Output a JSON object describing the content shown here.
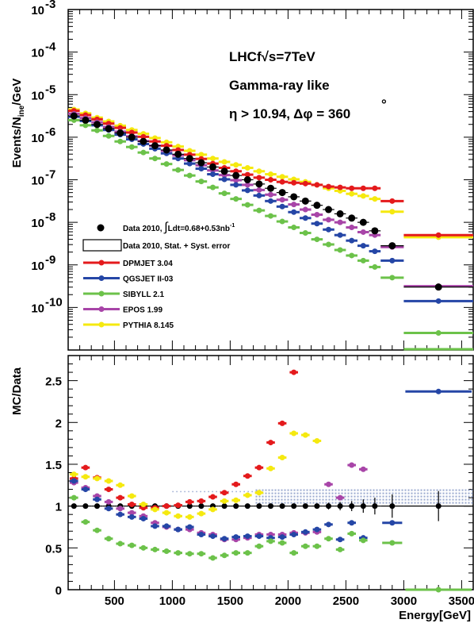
{
  "colors": {
    "red": "#e41a1c",
    "blue": "#2546a6",
    "green": "#6cc24a",
    "purple": "#a845a8",
    "yellow": "#f5e90f",
    "black": "#000000",
    "band": "#9aa9cf"
  },
  "chart_data": [
    {
      "type": "scatter",
      "xlabel": "",
      "ylabel": "Events/N_ine/GeV",
      "ylabel_main": "Events/N",
      "ylabel_sub": "ine",
      "ylabel_tail": "/GeV",
      "yscale": "log",
      "xlim": [
        100,
        3600
      ],
      "ylim_exp": [
        -11,
        -3
      ],
      "y_tick_labels": [
        "10",
        "10",
        "10",
        "10",
        "10",
        "10",
        "10",
        "10"
      ],
      "y_tick_exponents": [
        "-3",
        "-4",
        "-5",
        "-6",
        "-7",
        "-8",
        "-9",
        "-10"
      ],
      "y_tick_values_exp": [
        -3,
        -4,
        -5,
        -6,
        -7,
        -8,
        -9,
        -10
      ],
      "annotations": {
        "line1": "LHCf√s=7TeV",
        "line2": "Gamma-ray like",
        "line3": "η > 10.94, Δφ = 360",
        "degree": "°"
      },
      "legend_position": "lower-left",
      "legend": [
        {
          "key": "data",
          "label_a": "Data 2010, ",
          "label_b": "Ldt=0.68+0.53nb",
          "label_sup": "-1",
          "integral": "∫"
        },
        {
          "key": "syst",
          "label": "Data 2010, Stat. + Syst. error"
        },
        {
          "key": "red",
          "label": "DPMJET 3.04"
        },
        {
          "key": "blue",
          "label": "QGSJET II-03"
        },
        {
          "key": "green",
          "label": "SIBYLL 2.1"
        },
        {
          "key": "purple",
          "label": "EPOS 1.99"
        },
        {
          "key": "yellow",
          "label": "PYTHIA 8.145"
        }
      ],
      "x_bins": [
        100,
        200,
        300,
        400,
        500,
        600,
        700,
        800,
        900,
        1000,
        1100,
        1200,
        1300,
        1400,
        1500,
        1600,
        1700,
        1800,
        1900,
        2000,
        2100,
        2200,
        2300,
        2400,
        2500,
        2600,
        2700,
        2800,
        3000,
        3600
      ],
      "series": [
        {
          "key": "yellow",
          "name": "PYTHIA 8.145",
          "log_values": [
            -5.35,
            -5.44,
            -5.54,
            -5.63,
            -5.73,
            -5.83,
            -5.92,
            -6.02,
            -6.12,
            -6.22,
            -6.32,
            -6.41,
            -6.5,
            -6.58,
            -6.65,
            -6.72,
            -6.8,
            -6.87,
            -6.93,
            -6.99,
            -7.05,
            -7.12,
            -7.2,
            -7.26,
            -7.33,
            -7.38,
            -7.45,
            -7.75,
            -8.35
          ]
        },
        {
          "key": "red",
          "name": "DPMJET 3.04",
          "log_values": [
            -5.38,
            -5.48,
            -5.58,
            -5.68,
            -5.78,
            -5.89,
            -5.99,
            -6.1,
            -6.2,
            -6.3,
            -6.41,
            -6.51,
            -6.62,
            -6.72,
            -6.8,
            -6.88,
            -6.95,
            -7.0,
            -7.05,
            -7.07,
            -7.09,
            -7.12,
            -7.16,
            -7.18,
            -7.2,
            -7.2,
            -7.2,
            -7.5,
            -8.3
          ]
        },
        {
          "key": "purple",
          "name": "EPOS 1.99",
          "log_values": [
            -5.45,
            -5.55,
            -5.65,
            -5.76,
            -5.87,
            -5.98,
            -6.09,
            -6.2,
            -6.32,
            -6.43,
            -6.54,
            -6.66,
            -6.78,
            -6.89,
            -7.01,
            -7.12,
            -7.24,
            -7.35,
            -7.47,
            -7.58,
            -7.7,
            -7.82,
            -7.94,
            -8.0,
            -8.12,
            -8.23,
            -8.3,
            -8.58,
            -9.5
          ]
        },
        {
          "key": "blue",
          "name": "QGSJET II-03",
          "log_values": [
            -5.52,
            -5.62,
            -5.72,
            -5.83,
            -5.94,
            -6.05,
            -6.16,
            -6.27,
            -6.38,
            -6.5,
            -6.62,
            -6.74,
            -6.87,
            -6.99,
            -7.12,
            -7.25,
            -7.37,
            -7.5,
            -7.63,
            -7.76,
            -7.9,
            -8.03,
            -8.17,
            -8.3,
            -8.43,
            -8.55,
            -8.68,
            -8.9,
            -9.85
          ]
        },
        {
          "key": "green",
          "name": "SIBYLL 2.1",
          "log_values": [
            -5.6,
            -5.72,
            -5.84,
            -5.97,
            -6.1,
            -6.23,
            -6.36,
            -6.5,
            -6.63,
            -6.77,
            -6.9,
            -7.04,
            -7.18,
            -7.32,
            -7.45,
            -7.59,
            -7.72,
            -7.85,
            -7.98,
            -8.12,
            -8.25,
            -8.4,
            -8.52,
            -8.65,
            -8.78,
            -8.9,
            -9.05,
            -9.3,
            -10.6
          ]
        },
        {
          "key": "data",
          "name": "Data 2010",
          "log_values": [
            -5.5,
            -5.6,
            -5.7,
            -5.8,
            -5.9,
            -6.0,
            -6.1,
            -6.2,
            -6.3,
            -6.4,
            -6.5,
            -6.6,
            -6.7,
            -6.8,
            -6.9,
            -7.0,
            -7.1,
            -7.2,
            -7.3,
            -7.4,
            -7.5,
            -7.6,
            -7.7,
            -7.8,
            -7.9,
            -8.0,
            -8.2,
            -8.55,
            -9.52
          ]
        }
      ]
    },
    {
      "type": "scatter",
      "xlabel": "Energy[GeV]",
      "ylabel": "MC/Data",
      "xlim": [
        100,
        3600
      ],
      "ylim": [
        0,
        2.8
      ],
      "x_ticks": [
        500,
        1000,
        1500,
        2000,
        2500,
        3000,
        3500
      ],
      "x_tick_labels": [
        "500",
        "1000",
        "1500",
        "2000",
        "2500",
        "3000",
        "3500"
      ],
      "y_ticks": [
        0,
        0.5,
        1,
        1.5,
        2,
        2.5
      ],
      "y_tick_labels": [
        "0",
        "0.5",
        "1",
        "1.5",
        "2",
        "2.5"
      ],
      "band_range": [
        1720,
        3600
      ],
      "band_upper": 1.2,
      "series": [
        {
          "key": "data",
          "name": "Data 2010",
          "values": [
            1,
            1,
            1,
            1,
            1,
            1,
            1,
            1,
            1,
            1,
            1,
            1,
            1,
            1,
            1,
            1,
            1,
            1,
            1,
            1,
            1,
            1,
            1,
            1,
            1,
            1,
            1,
            1,
            1
          ],
          "errors": [
            0.02,
            0.02,
            0.02,
            0.02,
            0.02,
            0.02,
            0.02,
            0.02,
            0.02,
            0.02,
            0.02,
            0.02,
            0.02,
            0.02,
            0.02,
            0.02,
            0.02,
            0.02,
            0.02,
            0.03,
            0.03,
            0.03,
            0.04,
            0.05,
            0.06,
            0.08,
            0.1,
            0.14,
            0.18
          ]
        },
        {
          "key": "red",
          "name": "DPMJET 3.04",
          "values": [
            1.33,
            1.46,
            1.34,
            1.2,
            1.1,
            1.02,
            0.98,
            0.98,
            1.0,
            1.01,
            1.05,
            1.06,
            1.11,
            1.16,
            1.26,
            1.36,
            1.46,
            1.76,
            1.99,
            2.6,
            null,
            null,
            null,
            null,
            null,
            null,
            null,
            null,
            null
          ]
        },
        {
          "key": "yellow",
          "name": "PYTHIA 8.145",
          "values": [
            1.38,
            1.35,
            1.33,
            1.3,
            1.25,
            1.12,
            1.02,
            0.96,
            0.92,
            0.88,
            0.87,
            0.91,
            0.96,
            1.06,
            1.07,
            1.13,
            1.16,
            1.45,
            1.58,
            1.87,
            1.85,
            1.78,
            null,
            null,
            null,
            null,
            null,
            null,
            null
          ]
        },
        {
          "key": "purple",
          "name": "EPOS 1.99",
          "values": [
            1.28,
            1.22,
            1.12,
            1.05,
            0.97,
            0.92,
            0.88,
            0.8,
            0.75,
            0.72,
            0.72,
            0.68,
            0.66,
            0.6,
            0.6,
            0.62,
            0.66,
            0.66,
            0.66,
            0.68,
            0.68,
            0.69,
            1.26,
            1.1,
            1.49,
            1.44,
            null,
            null,
            null
          ]
        },
        {
          "key": "blue",
          "name": "QGSJET II-03",
          "values": [
            1.3,
            1.2,
            1.08,
            0.97,
            0.9,
            0.87,
            0.85,
            0.76,
            0.76,
            0.72,
            0.75,
            0.66,
            0.64,
            0.61,
            0.63,
            0.64,
            0.64,
            0.62,
            0.63,
            0.66,
            0.69,
            0.72,
            0.78,
            0.6,
            0.8,
            0.62,
            null,
            0.8,
            2.37
          ]
        },
        {
          "key": "green",
          "name": "SIBYLL 2.1",
          "values": [
            1.1,
            0.81,
            0.71,
            0.61,
            0.55,
            0.53,
            0.5,
            0.48,
            0.46,
            0.44,
            0.43,
            0.43,
            0.38,
            0.41,
            0.44,
            0.44,
            0.52,
            0.58,
            0.56,
            0.44,
            0.52,
            0.52,
            0.61,
            0.48,
            0.67,
            0.59,
            null,
            0.56,
            0.0
          ]
        }
      ]
    }
  ]
}
